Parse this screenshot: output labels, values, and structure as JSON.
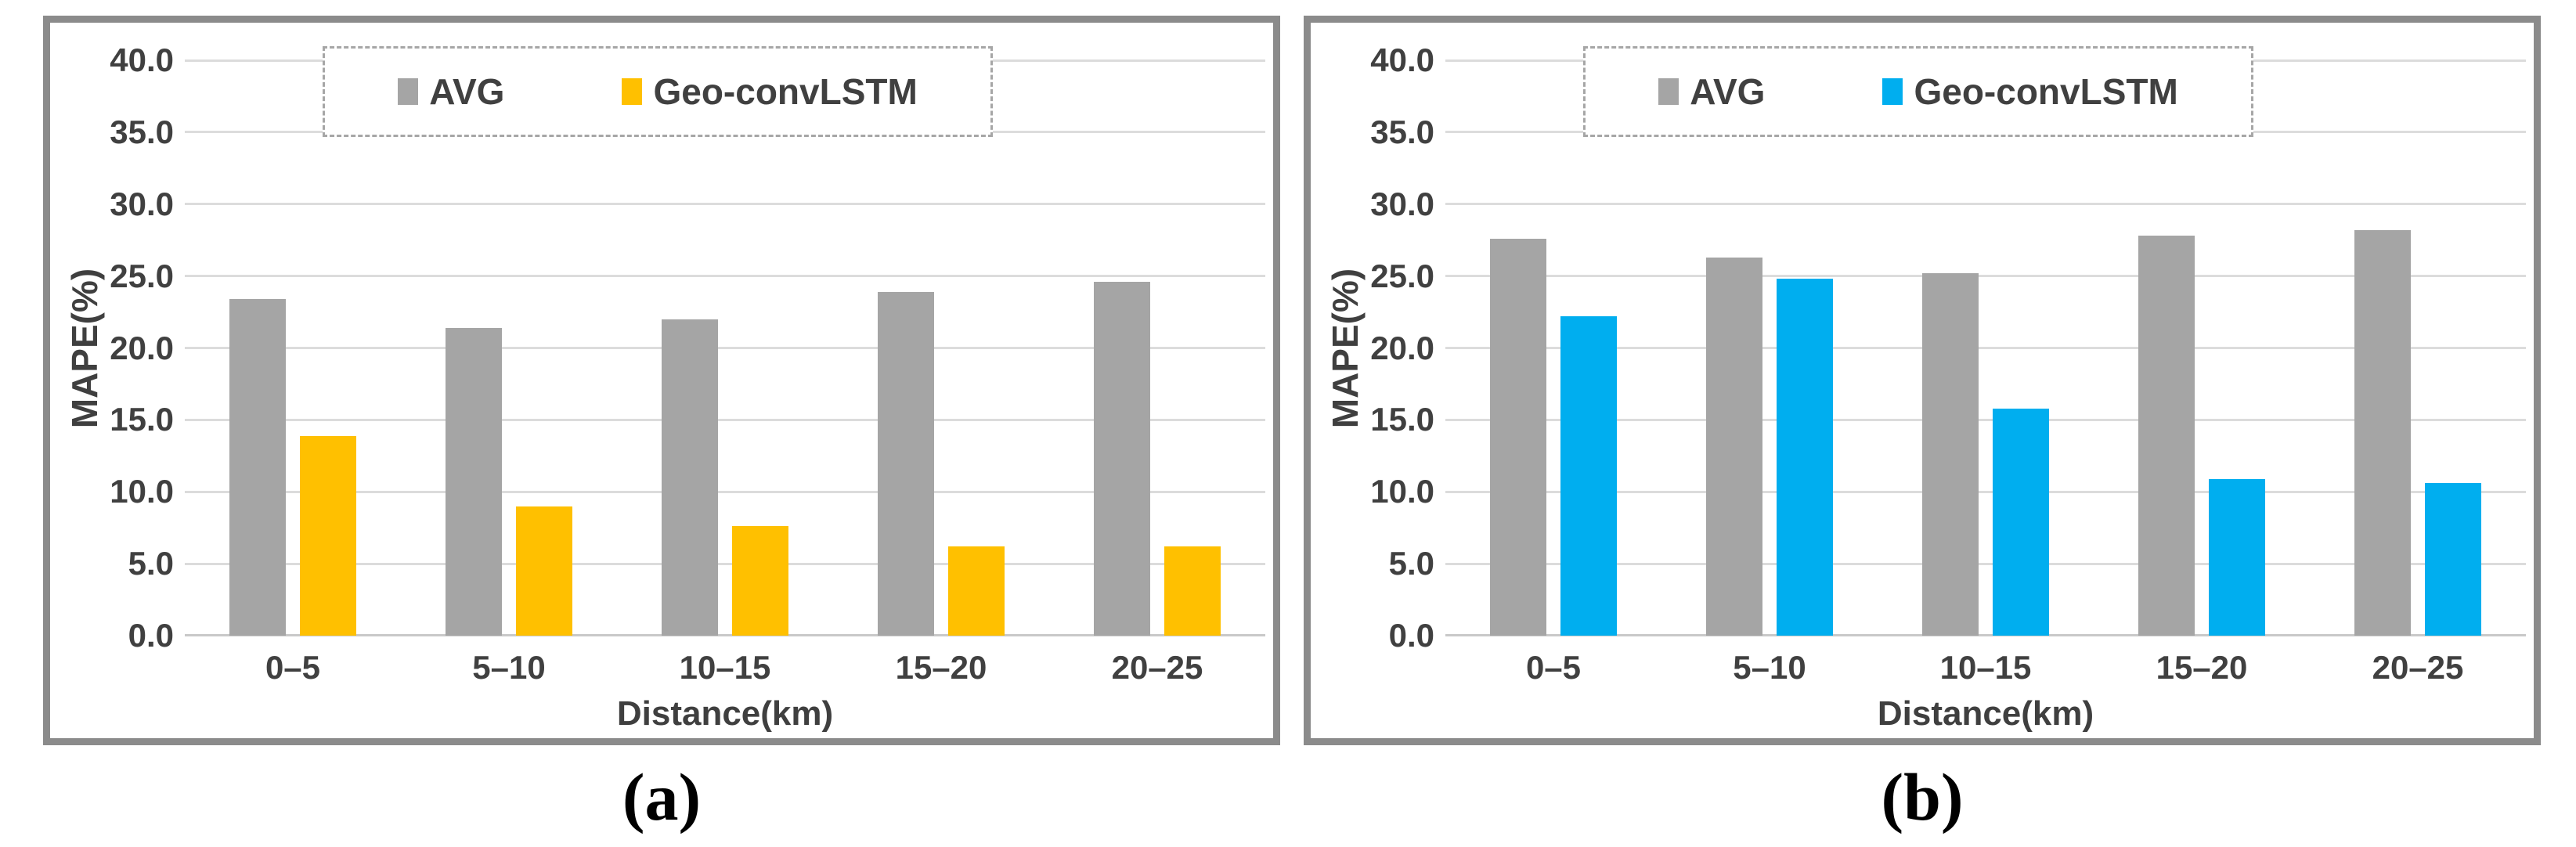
{
  "figure": {
    "description": "Two-panel bar chart comparing MAPE(%) of AVG baseline vs Geo-convLSTM model over distance bins",
    "panel_captions": [
      "(a)",
      "(b)"
    ]
  },
  "colors": {
    "avg_gray": "#a5a5a5",
    "geo_gold": "#ffc000",
    "geo_blue": "#00aeef",
    "gridline": "#dcdcdc",
    "axis_text": "#404040",
    "panel_border": "#8b8b8b"
  },
  "chart_data": [
    {
      "type": "bar",
      "caption": "(a)",
      "categories": [
        "0–5",
        "5–10",
        "10–15",
        "15–20",
        "20–25"
      ],
      "series": [
        {
          "name": "AVG",
          "color": "#a5a5a5",
          "values": [
            23.4,
            21.4,
            22.0,
            23.9,
            24.6
          ]
        },
        {
          "name": "Geo-convLSTM",
          "color": "#ffc000",
          "values": [
            13.9,
            9.0,
            7.6,
            6.2,
            6.2
          ]
        }
      ],
      "xlabel": "Distance(km)",
      "ylabel": "MAPE(%)",
      "ylim": [
        0,
        40
      ],
      "ytick_step": 5,
      "ytick_format_decimals": 1,
      "grid": true,
      "legend_position": "top-center",
      "legend_border": "dashed"
    },
    {
      "type": "bar",
      "caption": "(b)",
      "categories": [
        "0–5",
        "5–10",
        "10–15",
        "15–20",
        "20–25"
      ],
      "series": [
        {
          "name": "AVG",
          "color": "#a5a5a5",
          "values": [
            27.6,
            26.3,
            25.2,
            27.8,
            28.2
          ]
        },
        {
          "name": "Geo-convLSTM",
          "color": "#00aeef",
          "values": [
            22.2,
            24.8,
            15.8,
            10.9,
            10.6
          ]
        }
      ],
      "xlabel": "Distance(km)",
      "ylabel": "MAPE(%)",
      "ylim": [
        0,
        40
      ],
      "ytick_step": 5,
      "ytick_format_decimals": 1,
      "grid": true,
      "legend_position": "top-center",
      "legend_border": "dashed"
    }
  ]
}
